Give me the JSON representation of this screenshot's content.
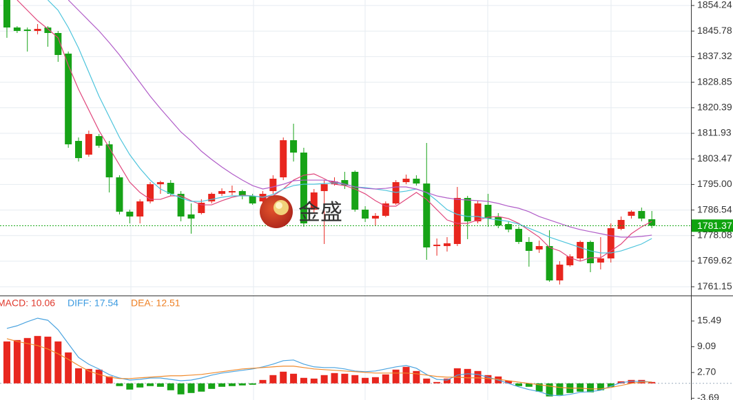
{
  "watermark": "金盛",
  "chart_data": [
    {
      "type": "candlestick",
      "up_color": "#e8261e",
      "down_color": "#17a317",
      "ylim": [
        1758.24,
        1856.06
      ],
      "yticks": [
        1854.24,
        1845.78,
        1837.32,
        1828.85,
        1820.39,
        1811.93,
        1803.47,
        {
          "value": 1795,
          "label": "1795.00"
        },
        1786.54,
        1778.08,
        1769.62,
        1761.15
      ],
      "grid": true,
      "last_price": 1781.37,
      "last_price_color": "#0fa30f",
      "open": [
        1856.06,
        1846.96,
        1846.28,
        1845.82,
        1846.96,
        1845.14,
        1838.31,
        1809.42,
        1804.87,
        1811.02,
        1808.29,
        1797.36,
        1785.99,
        1784.4,
        1789.4,
        1795.09,
        1795.54,
        1791.9,
        1785.08,
        1785.54,
        1789.4,
        1791.9,
        1792.36,
        1792.81,
        1791.22,
        1789.4,
        1792.81,
        1797.36,
        1809.65,
        1805.56,
        1786.67,
        1792.81,
        1795.09,
        1796.45,
        1799.19,
        1786.67,
        1783.72,
        1784.63,
        1788.72,
        1795.77,
        1796.91,
        1795.32,
        1774.61,
        1774.61,
        1775.3,
        1790.54,
        1782.8,
        1788.27,
        1784.17,
        1781.9,
        1780.3,
        1775.98,
        1773.48,
        1774.61,
        1763.24,
        1768.25,
        1770.52,
        1775.98,
        1769.16,
        1770.52,
        1780.3,
        1784.63,
        1786.22,
        1783.49
      ],
      "high": [
        1857.2,
        1847.41,
        1846.96,
        1848.1,
        1847.41,
        1845.82,
        1839.0,
        1810.56,
        1812.84,
        1811.7,
        1809.42,
        1798.05,
        1786.67,
        1790.09,
        1795.77,
        1796.23,
        1796.45,
        1792.81,
        1788.72,
        1790.09,
        1792.36,
        1793.73,
        1794.64,
        1793.27,
        1791.9,
        1792.81,
        1798.05,
        1810.56,
        1815.11,
        1807.15,
        1793.5,
        1796.45,
        1797.37,
        1799.19,
        1799.64,
        1787.81,
        1785.54,
        1789.4,
        1796.45,
        1798.27,
        1798.05,
        1808.74,
        1777.12,
        1777.57,
        1794.18,
        1791.22,
        1789.63,
        1791.9,
        1785.54,
        1782.8,
        1780.99,
        1777.57,
        1776.44,
        1779.85,
        1769.61,
        1771.89,
        1776.44,
        1776.44,
        1777.57,
        1782.12,
        1784.4,
        1786.45,
        1787.36,
        1786.22
      ],
      "low": [
        1843.55,
        1845.14,
        1839.0,
        1844.69,
        1840.59,
        1835.59,
        1807.15,
        1802.6,
        1804.19,
        1807.15,
        1792.36,
        1785.08,
        1782.12,
        1782.12,
        1788.72,
        1791.9,
        1791.22,
        1782.8,
        1778.71,
        1785.08,
        1788.72,
        1791.22,
        1791.45,
        1790.09,
        1788.27,
        1788.49,
        1791.9,
        1796.45,
        1802.6,
        1780.99,
        1785.54,
        1775.3,
        1794.64,
        1793.5,
        1785.99,
        1782.58,
        1781.44,
        1784.17,
        1788.27,
        1795.09,
        1794.64,
        1770.07,
        1771.43,
        1772.8,
        1774.61,
        1776.89,
        1782.12,
        1780.99,
        1780.53,
        1779.17,
        1775.3,
        1767.79,
        1772.34,
        1762.79,
        1761.88,
        1767.79,
        1769.61,
        1765.97,
        1766.88,
        1769.16,
        1779.85,
        1783.72,
        1782.8,
        1780.53
      ],
      "close": [
        1846.96,
        1845.82,
        1845.82,
        1846.5,
        1845.14,
        1837.86,
        1808.29,
        1803.74,
        1811.7,
        1807.83,
        1797.36,
        1785.99,
        1784.4,
        1789.4,
        1795.09,
        1795.77,
        1791.9,
        1784.4,
        1783.72,
        1788.95,
        1791.9,
        1792.81,
        1792.81,
        1791.22,
        1788.72,
        1791.9,
        1796.91,
        1809.65,
        1805.56,
        1782.12,
        1792.36,
        1795.09,
        1796.0,
        1794.64,
        1786.67,
        1783.72,
        1784.63,
        1788.72,
        1795.77,
        1796.91,
        1795.32,
        1774.16,
        1775.07,
        1775.52,
        1790.54,
        1782.8,
        1788.72,
        1783.72,
        1781.44,
        1780.08,
        1775.98,
        1773.02,
        1774.61,
        1763.24,
        1768.47,
        1771.2,
        1775.98,
        1768.93,
        1770.52,
        1780.53,
        1783.26,
        1786.0,
        1783.72,
        1781.37
      ],
      "series": [
        {
          "color": "#e0457b",
          "values": [
            null,
            1856.06,
            1852.65,
            1849.23,
            1846.5,
            1843.55,
            1834.45,
            1826.48,
            1819.66,
            1812.83,
            1807.15,
            1801.46,
            1795.77,
            1792.36,
            1790.08,
            1790.08,
            1791.22,
            1791.22,
            1789.63,
            1788.26,
            1788.26,
            1789.63,
            1790.77,
            1791.45,
            1791.22,
            1790.77,
            1791.22,
            1793.5,
            1796.45,
            1798.05,
            1798.5,
            1796.91,
            1795.09,
            1794.63,
            1793.5,
            1791.9,
            1789.63,
            1787.81,
            1787.81,
            1790.08,
            1792.36,
            1790.08,
            1786.67,
            1783.26,
            1782.12,
            1782.12,
            1783.26,
            1784.17,
            1784.4,
            1783.71,
            1782.12,
            1779.85,
            1777.57,
            1774.16,
            1773.02,
            1770.75,
            1769.61,
            1770.75,
            1770.75,
            1773.02,
            1775.3,
            1778.71,
            1780.98,
            1782.8
          ]
        },
        {
          "color": "#4cc4dc",
          "values": [
            null,
            null,
            null,
            null,
            1856.06,
            1852.65,
            1846.96,
            1840.13,
            1832.17,
            1824.21,
            1817.38,
            1810.56,
            1804.87,
            1800.32,
            1796.45,
            1793.5,
            1791.9,
            1790.54,
            1789.4,
            1789.4,
            1790.08,
            1790.77,
            1791.22,
            1791.22,
            1791.22,
            1790.77,
            1791.68,
            1793.5,
            1794.63,
            1795.09,
            1795.09,
            1795.32,
            1795.54,
            1795.09,
            1794.18,
            1793.95,
            1793.5,
            1793.04,
            1792.36,
            1792.81,
            1793.5,
            1792.36,
            1789.63,
            1786.67,
            1785.08,
            1784.4,
            1784.4,
            1783.71,
            1783.26,
            1782.8,
            1781.89,
            1780.53,
            1779.16,
            1777.57,
            1776.43,
            1775.3,
            1774.16,
            1773.02,
            1772.34,
            1772.34,
            1773.02,
            1774.16,
            1775.3,
            1777.12
          ]
        },
        {
          "color": "#b05cc8",
          "values": [
            null,
            null,
            null,
            null,
            null,
            null,
            1856.06,
            1852.65,
            1849.23,
            1845.82,
            1841.95,
            1837.86,
            1833.31,
            1828.76,
            1824.21,
            1820.11,
            1816.25,
            1812.38,
            1809.42,
            1806.01,
            1803.28,
            1800.78,
            1798.5,
            1796.45,
            1794.63,
            1793.5,
            1794.18,
            1795.09,
            1796.23,
            1796.45,
            1796.45,
            1796.45,
            1796.0,
            1795.09,
            1794.18,
            1793.72,
            1793.5,
            1793.72,
            1794.18,
            1794.18,
            1793.5,
            1792.36,
            1791.22,
            1790.54,
            1790.08,
            1789.86,
            1789.63,
            1789.4,
            1788.72,
            1787.81,
            1787.13,
            1785.99,
            1784.4,
            1783.26,
            1782.12,
            1780.98,
            1780.07,
            1779.39,
            1778.71,
            1778.03,
            1777.57,
            1777.57,
            1777.8,
            1778.25
          ]
        }
      ]
    },
    {
      "type": "macd",
      "up_color": "#e8261e",
      "down_color": "#17a317",
      "ylim": [
        -4.13,
        21.64
      ],
      "yticks": [
        15.49,
        9.09,
        {
          "value": 2.7,
          "label": "2.70"
        },
        -3.69
      ],
      "legend": [
        {
          "text": "MACD: 10.06",
          "color": "#e0392d"
        },
        {
          "text": "DIFF: 17.54",
          "color": "#3d9be0"
        },
        {
          "text": "DEA: 12.51",
          "color": "#ee7f22"
        }
      ],
      "histogram": [
        10.41,
        10.75,
        11.26,
        11.77,
        11.6,
        10.41,
        7.68,
        3.75,
        3.58,
        3.41,
        1.71,
        -0.68,
        -1.54,
        -1.02,
        -0.68,
        -0.85,
        -1.71,
        -2.73,
        -2.39,
        -2.05,
        -1.37,
        -0.85,
        -0.68,
        -0.51,
        -0.34,
        0.85,
        2.05,
        2.9,
        2.39,
        1.37,
        1.19,
        2.05,
        2.56,
        2.39,
        2.05,
        1.37,
        1.54,
        2.22,
        3.41,
        4.1,
        3.07,
        1.19,
        0.34,
        1.19,
        3.75,
        3.58,
        3.07,
        2.05,
        1.71,
        0.68,
        -0.68,
        -0.85,
        -2.05,
        -3.24,
        -2.9,
        -2.39,
        -2.05,
        -2.22,
        -1.71,
        -0.85,
        0.51,
        0.85,
        0.85,
        0.34
      ],
      "series": [
        {
          "color": "#4aa3df",
          "values": [
            13.65,
            14.3,
            15.32,
            16.18,
            15.67,
            13.31,
            9.86,
            6.45,
            4.74,
            3.55,
            2.18,
            1.33,
            0.82,
            0.99,
            1.33,
            1.33,
            0.99,
            0.65,
            0.82,
            1.33,
            2.05,
            2.56,
            2.9,
            3.24,
            3.58,
            4.1,
            4.78,
            5.63,
            5.8,
            4.78,
            4.1,
            3.92,
            3.92,
            3.58,
            3.07,
            2.9,
            3.07,
            3.58,
            4.1,
            4.44,
            3.75,
            2.22,
            0.99,
            0.82,
            2.05,
            2.39,
            2.22,
            1.54,
            0.82,
            0,
            -0.85,
            -1.54,
            -2.05,
            -2.9,
            -3.07,
            -2.73,
            -2.22,
            -2.05,
            -1.71,
            -0.68,
            0.17,
            0.51,
            0.51,
            0.34
          ]
        },
        {
          "color": "#f08a2c",
          "values": [
            11.09,
            10.41,
            9.9,
            9.39,
            8.53,
            7.34,
            5.97,
            4.44,
            3.07,
            2.22,
            1.54,
            1.19,
            1.19,
            1.37,
            1.54,
            1.71,
            1.88,
            1.88,
            2.05,
            2.22,
            2.56,
            2.9,
            3.24,
            3.58,
            3.75,
            3.92,
            4.1,
            4.27,
            4.27,
            3.92,
            3.58,
            3.41,
            3.24,
            3.07,
            2.9,
            2.73,
            2.56,
            2.56,
            2.56,
            2.56,
            2.39,
            2.05,
            1.71,
            1.54,
            1.54,
            1.37,
            1.37,
            1.19,
            1.02,
            0.65,
            0.31,
            0,
            -0.34,
            -0.68,
            -1.02,
            -1.19,
            -1.19,
            -1.37,
            -1.37,
            -1.02,
            -0.51,
            0,
            0.34,
            0.34
          ]
        }
      ]
    }
  ]
}
